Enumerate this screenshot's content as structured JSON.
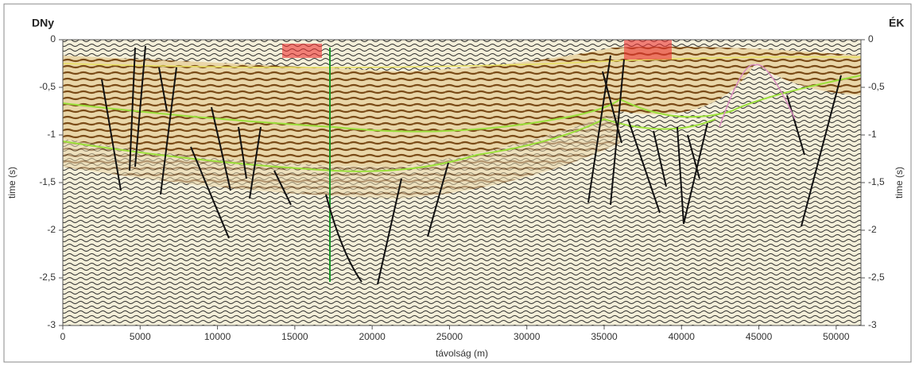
{
  "chart_data": {
    "type": "seismic",
    "left_label": "DNy",
    "right_label": "ÉK",
    "xlabel": "távolság (m)",
    "ylabel": "time (s)",
    "xlim": [
      0,
      51600
    ],
    "ylim": [
      -3,
      0
    ],
    "xticks": [
      0,
      5000,
      10000,
      15000,
      20000,
      25000,
      30000,
      35000,
      40000,
      45000,
      50000
    ],
    "yticks": [
      0,
      {
        "value": -0.5,
        "label": "-0,5"
      },
      -1,
      {
        "value": -1.5,
        "label": "-1,5"
      },
      -2,
      {
        "value": -2.5,
        "label": "-2,5"
      },
      -3
    ]
  }
}
